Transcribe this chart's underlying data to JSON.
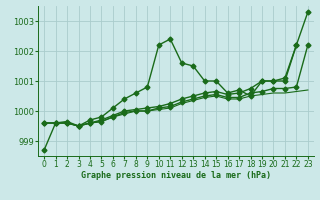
{
  "title": "Graphe pression niveau de la mer (hPa)",
  "bg_color": "#cce8e8",
  "grid_color": "#aacccc",
  "line_color": "#1a6b1a",
  "xlim": [
    -0.5,
    23.5
  ],
  "ylim": [
    998.5,
    1003.5
  ],
  "yticks": [
    999,
    1000,
    1001,
    1002,
    1003
  ],
  "xticks": [
    0,
    1,
    2,
    3,
    4,
    5,
    6,
    7,
    8,
    9,
    10,
    11,
    12,
    13,
    14,
    15,
    16,
    17,
    18,
    19,
    20,
    21,
    22,
    23
  ],
  "series": [
    {
      "x": [
        0,
        1,
        2,
        3,
        4,
        5,
        6,
        7,
        8,
        9,
        10,
        11,
        12,
        13,
        14,
        15,
        16,
        17,
        18,
        19,
        20,
        21,
        22
      ],
      "y": [
        998.7,
        999.6,
        999.6,
        999.5,
        999.7,
        999.8,
        1000.1,
        1000.4,
        1000.6,
        1000.8,
        1002.2,
        1002.4,
        1001.6,
        1001.5,
        1001.0,
        1001.0,
        1000.6,
        1000.7,
        1000.5,
        1001.0,
        1001.0,
        1001.0,
        1002.2
      ],
      "marker": "D",
      "markersize": 2.5,
      "linewidth": 1.0
    },
    {
      "x": [
        0,
        1,
        2,
        3,
        4,
        5,
        6,
        7,
        8,
        9,
        10,
        11,
        12,
        13,
        14,
        15,
        16,
        17,
        18,
        19,
        20,
        21,
        22,
        23
      ],
      "y": [
        999.6,
        999.6,
        999.65,
        999.5,
        999.6,
        999.7,
        999.85,
        1000.0,
        1000.05,
        1000.1,
        1000.15,
        1000.25,
        1000.4,
        1000.5,
        1000.6,
        1000.65,
        1000.55,
        1000.6,
        1000.75,
        1001.0,
        1001.0,
        1001.1,
        1002.2,
        1003.3
      ],
      "marker": "D",
      "markersize": 2.5,
      "linewidth": 1.0
    },
    {
      "x": [
        0,
        1,
        2,
        3,
        4,
        5,
        6,
        7,
        8,
        9,
        10,
        11,
        12,
        13,
        14,
        15,
        16,
        17,
        18,
        19,
        20,
        21,
        22,
        23
      ],
      "y": [
        999.6,
        999.6,
        999.6,
        999.5,
        999.6,
        999.65,
        999.8,
        999.95,
        1000.0,
        1000.0,
        1000.1,
        1000.15,
        1000.3,
        1000.4,
        1000.5,
        1000.55,
        1000.45,
        1000.45,
        1000.6,
        1000.65,
        1000.75,
        1000.75,
        1000.8,
        1002.2
      ],
      "marker": "D",
      "markersize": 2.5,
      "linewidth": 1.0
    },
    {
      "x": [
        0,
        1,
        2,
        3,
        4,
        5,
        6,
        7,
        8,
        9,
        10,
        11,
        12,
        13,
        14,
        15,
        16,
        17,
        18,
        19,
        20,
        21,
        22,
        23
      ],
      "y": [
        999.6,
        999.6,
        999.6,
        999.5,
        999.6,
        999.65,
        999.8,
        999.9,
        1000.0,
        1000.0,
        1000.05,
        1000.1,
        1000.25,
        1000.35,
        1000.45,
        1000.5,
        1000.4,
        1000.4,
        1000.5,
        1000.55,
        1000.6,
        1000.6,
        1000.65,
        1000.7
      ],
      "marker": null,
      "markersize": 0,
      "linewidth": 0.8
    }
  ]
}
